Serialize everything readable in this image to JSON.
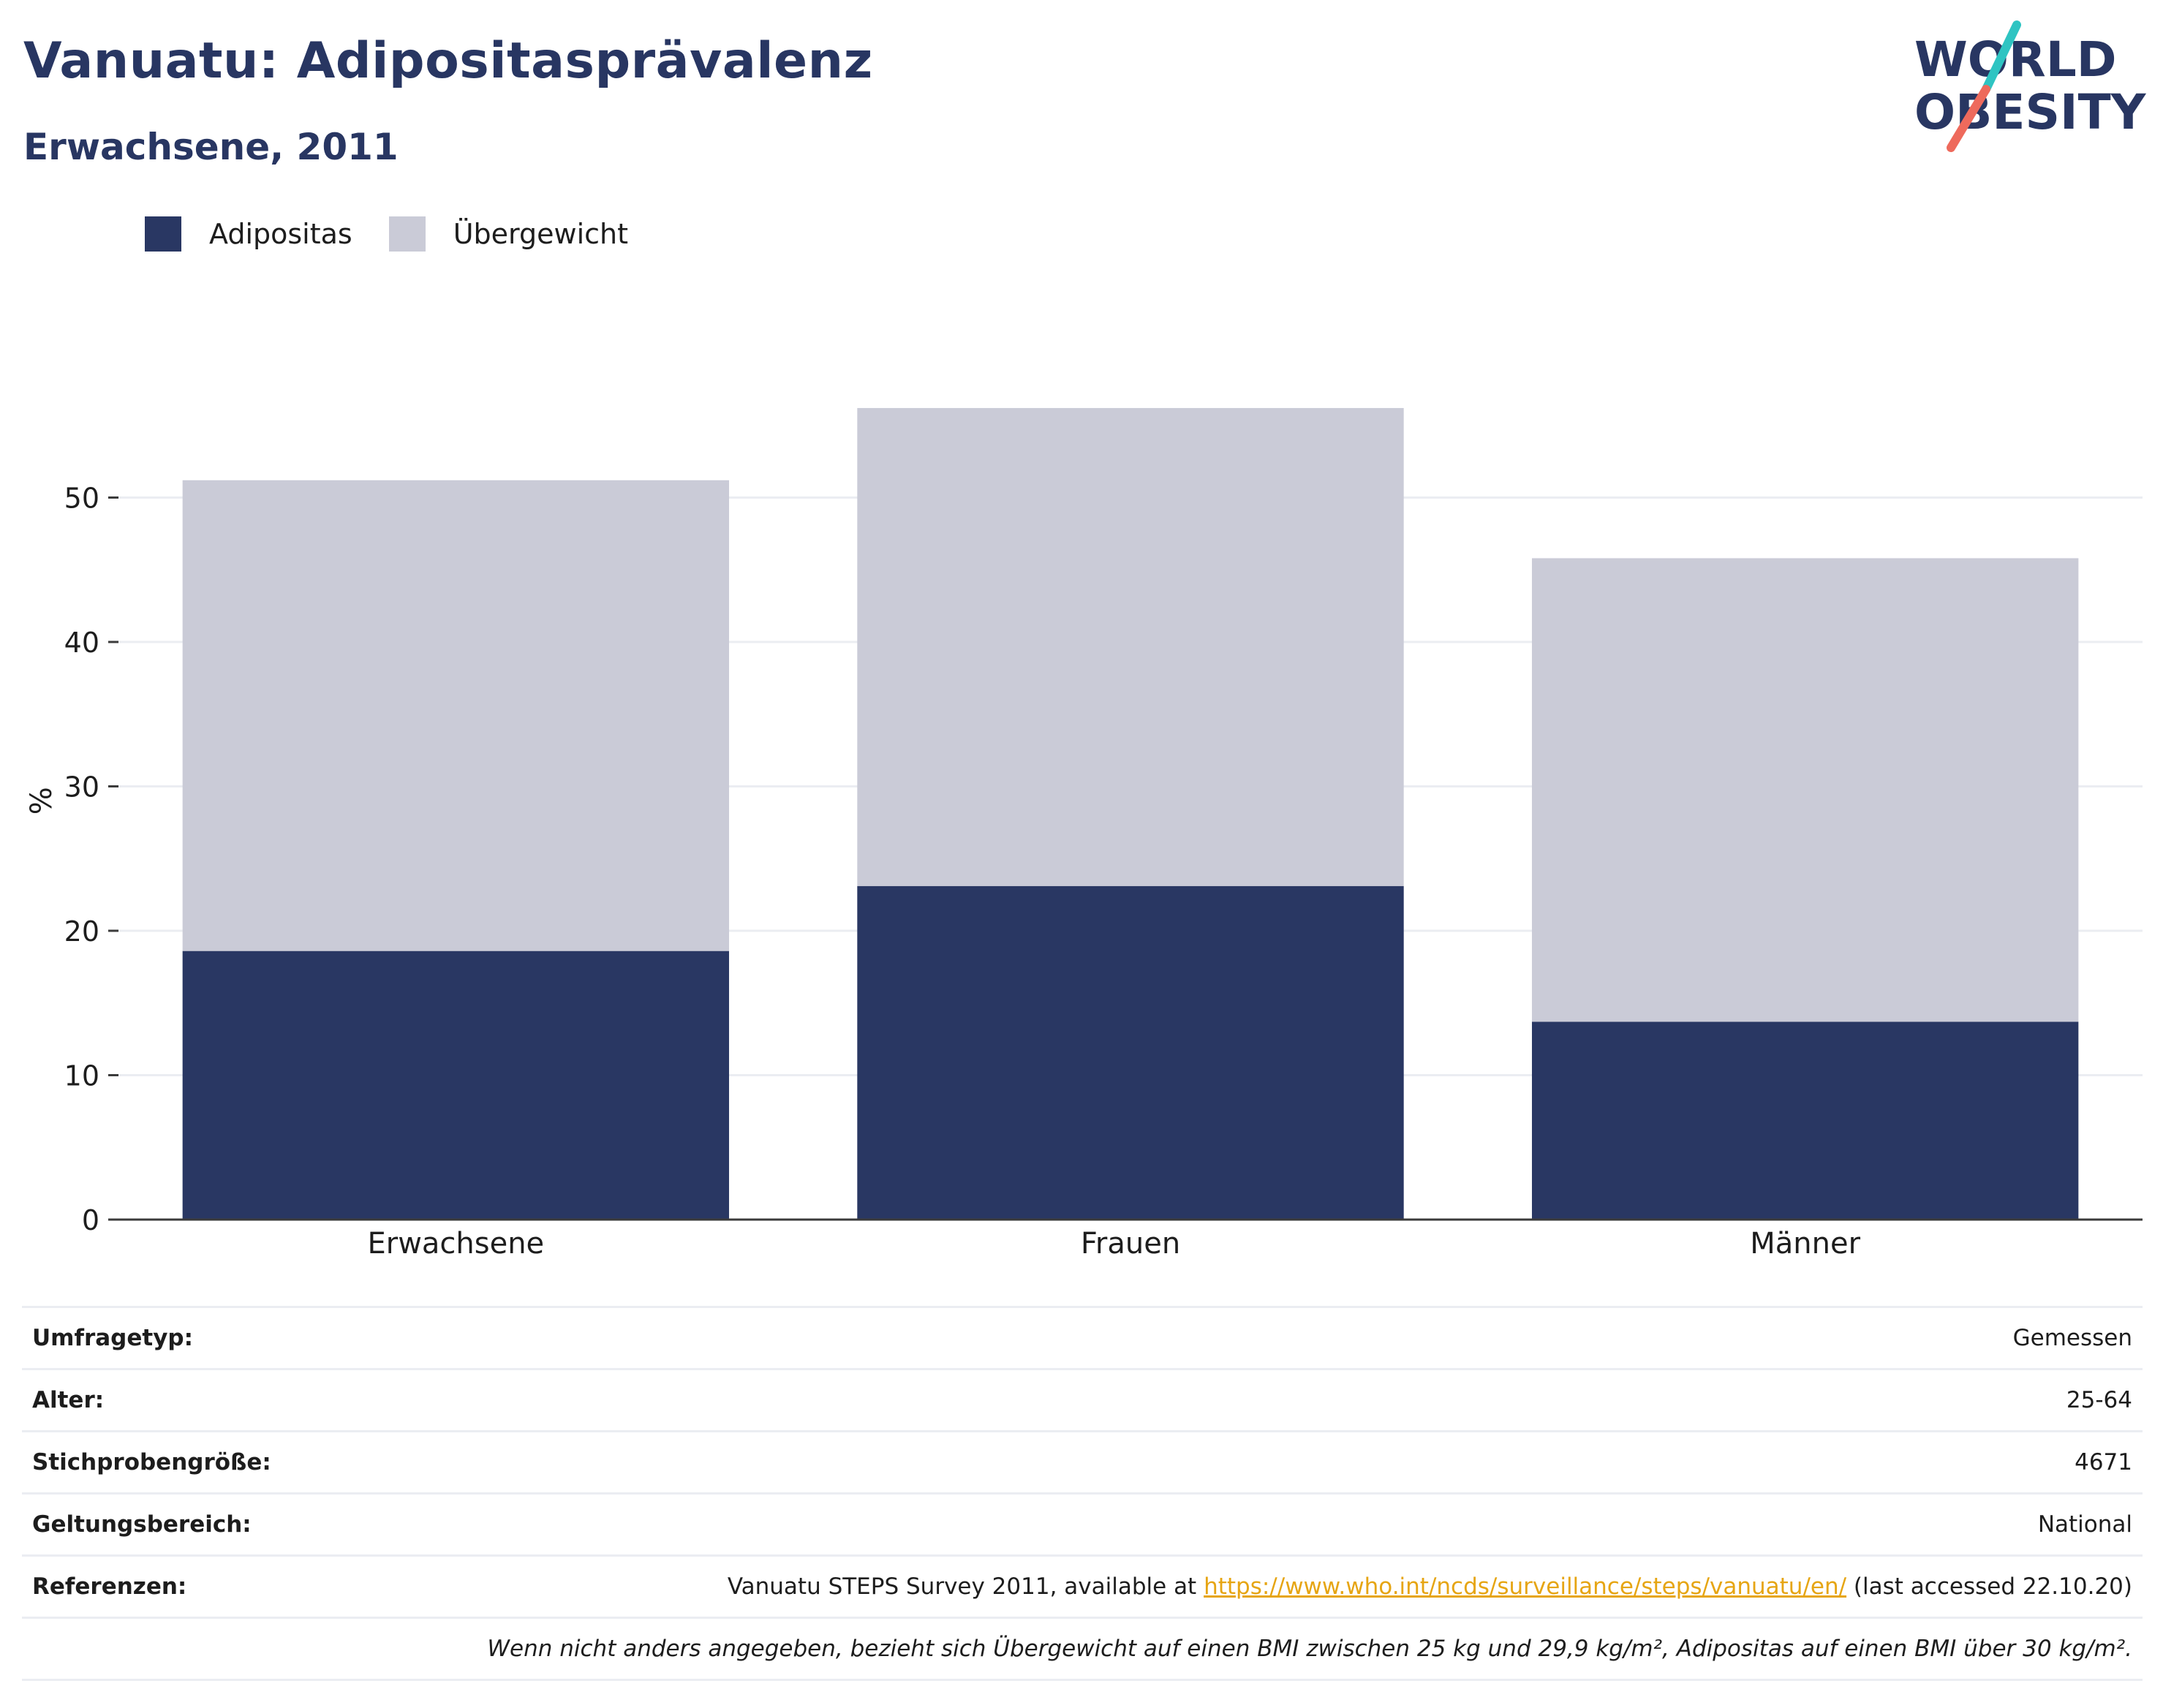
{
  "header": {
    "title": "Vanuatu: Adipositasprävalenz",
    "subtitle": "Erwachsene, 2011"
  },
  "logo": {
    "line1": "WORLD",
    "line2": "OBESITY"
  },
  "colors": {
    "obesity": "#293763",
    "overweight": "#cacbd7",
    "brand": "#283662",
    "link": "#e6a513",
    "accent_teal": "#2ec4c2",
    "accent_coral": "#ee6a5c"
  },
  "chart_data": {
    "type": "bar",
    "stacked": true,
    "categories": [
      "Erwachsene",
      "Frauen",
      "Männer"
    ],
    "series": [
      {
        "name": "Adipositas",
        "values": [
          18.6,
          23.1,
          13.7
        ]
      },
      {
        "name": "Übergewicht",
        "values": [
          32.6,
          33.1,
          32.1
        ]
      }
    ],
    "ylabel": "%",
    "ylim": [
      0,
      57
    ],
    "yticks": [
      0,
      10,
      20,
      30,
      40,
      50
    ],
    "grid": true,
    "legend_position": "top-left"
  },
  "info": {
    "rows": [
      {
        "label": "Umfragetyp:",
        "value": "Gemessen"
      },
      {
        "label": "Alter:",
        "value": "25-64"
      },
      {
        "label": "Stichprobengröße:",
        "value": "4671"
      },
      {
        "label": "Geltungsbereich:",
        "value": "National"
      }
    ],
    "references": {
      "label": "Referenzen:",
      "prefix": "Vanuatu STEPS Survey 2011, available at ",
      "link": "https://www.who.int/ncds/surveillance/steps/vanuatu/en/",
      "suffix": " (last accessed 22.10.20)"
    },
    "note": "Wenn nicht anders angegeben, bezieht sich Übergewicht auf einen BMI zwischen 25 kg und 29,9 kg/m², Adipositas auf einen BMI über 30 kg/m²."
  }
}
